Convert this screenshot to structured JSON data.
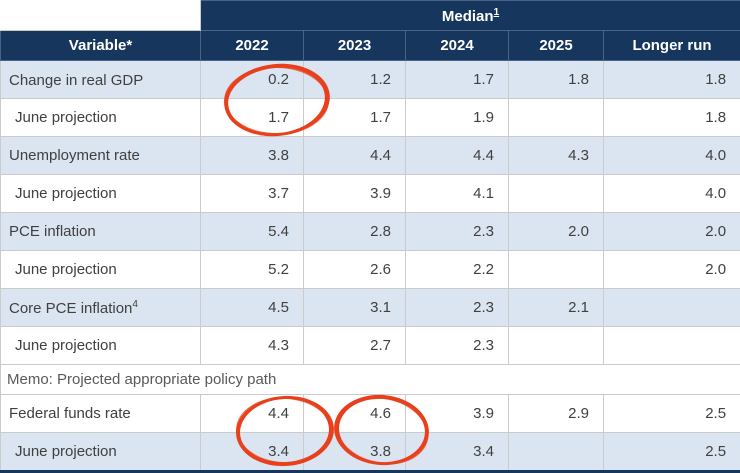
{
  "colors": {
    "header_bg": "#17365D",
    "row_alt": "#DBE5F1",
    "row_plain": "#FFFFFF",
    "grid": "#CBCBCB",
    "text": "#404040",
    "memo_text": "#595959",
    "annotation": "#E8401C"
  },
  "table": {
    "group_header": "Median",
    "group_header_sup": "1",
    "variable_header": "Variable*",
    "year_headers": [
      "2022",
      "2023",
      "2024",
      "2025",
      "Longer run"
    ],
    "rows": [
      {
        "label": "Change in real GDP",
        "sup": "",
        "values": [
          "0.2",
          "1.2",
          "1.7",
          "1.8",
          "1.8"
        ]
      },
      {
        "label": "June projection",
        "sup": "",
        "values": [
          "1.7",
          "1.7",
          "1.9",
          "",
          "1.8"
        ]
      },
      {
        "label": "Unemployment rate",
        "sup": "",
        "values": [
          "3.8",
          "4.4",
          "4.4",
          "4.3",
          "4.0"
        ]
      },
      {
        "label": "June projection",
        "sup": "",
        "values": [
          "3.7",
          "3.9",
          "4.1",
          "",
          "4.0"
        ]
      },
      {
        "label": "PCE inflation",
        "sup": "",
        "values": [
          "5.4",
          "2.8",
          "2.3",
          "2.0",
          "2.0"
        ]
      },
      {
        "label": "June projection",
        "sup": "",
        "values": [
          "5.2",
          "2.6",
          "2.2",
          "",
          "2.0"
        ]
      },
      {
        "label": "Core PCE inflation",
        "sup": "4",
        "values": [
          "4.5",
          "3.1",
          "2.3",
          "2.1",
          ""
        ]
      },
      {
        "label": "June projection",
        "sup": "",
        "values": [
          "4.3",
          "2.7",
          "2.3",
          "",
          ""
        ]
      },
      {
        "label": "Federal funds rate",
        "sup": "",
        "values": [
          "4.4",
          "4.6",
          "3.9",
          "2.9",
          "2.5"
        ]
      },
      {
        "label": "June projection",
        "sup": "",
        "values": [
          "3.4",
          "3.8",
          "3.4",
          "",
          "2.5"
        ]
      }
    ],
    "memo_label": "Memo: Projected appropriate policy path"
  },
  "annotations": [
    {
      "id": "circle-gdp-2022",
      "circled_values": "0.2 and 1.7 in 2022 column (Change in real GDP / June projection)"
    },
    {
      "id": "circle-ffr-2022",
      "circled_values": "4.4 and 3.4 in 2022 column (Federal funds rate / June projection)"
    },
    {
      "id": "circle-ffr-2023",
      "circled_values": "4.6 and 3.8 in 2023 column (Federal funds rate / June projection)"
    }
  ]
}
